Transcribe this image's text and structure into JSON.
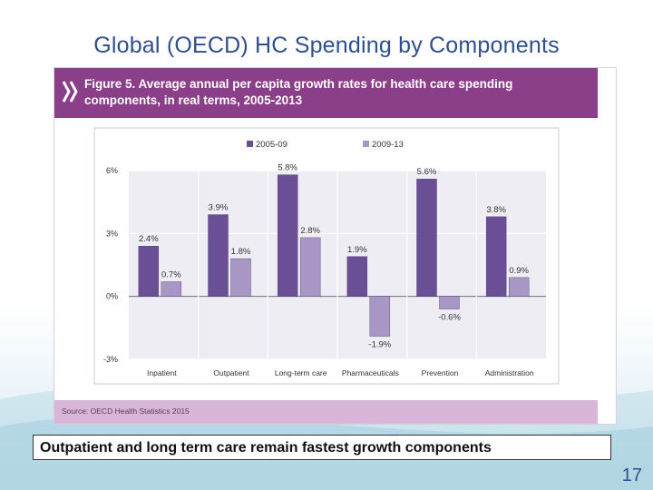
{
  "slide": {
    "title": "Global (OECD) HC Spending by Components",
    "note": "Outpatient and long term care remain fastest growth components",
    "page_number": "17"
  },
  "figure": {
    "caption_line1": "Figure 5. Average annual per capita growth rates for health care spending",
    "caption_line2": "components, in real terms, 2005-2013",
    "source": "Source: OECD Health Statistics 2015"
  },
  "colors": {
    "header_bg": "#8a3f88",
    "footer_bg": "#d9b6d9",
    "series_2005_09": "#6b4f96",
    "series_2009_13": "#a896c4"
  },
  "chart_data": {
    "type": "bar",
    "title": "Figure 5. Average annual per capita growth rates for health care spending components, in real terms, 2005-2013",
    "xlabel": "",
    "ylabel": "",
    "categories": [
      "Inpatient",
      "Outpatient",
      "Long-term care",
      "Pharmaceuticals",
      "Prevention",
      "Administration"
    ],
    "series": [
      {
        "name": "2005-09",
        "values": [
          2.4,
          3.9,
          5.8,
          1.9,
          5.6,
          3.8
        ],
        "labels": [
          "2.4%",
          "3.9%",
          "5.8%",
          "1.9%",
          "5.6%",
          "3.8%"
        ]
      },
      {
        "name": "2009-13",
        "values": [
          0.7,
          1.8,
          2.8,
          -1.9,
          -0.6,
          0.9
        ],
        "labels": [
          "0.7%",
          "1.8%",
          "2.8%",
          "-1.9%",
          "-0.6%",
          "0.9%"
        ]
      }
    ],
    "yticks": [
      6,
      3,
      0,
      -3
    ],
    "ytick_labels": [
      "6%",
      "3%",
      "0%",
      "-3%"
    ],
    "ylim": [
      -3,
      6
    ],
    "grid": true,
    "legend_position": "top"
  }
}
